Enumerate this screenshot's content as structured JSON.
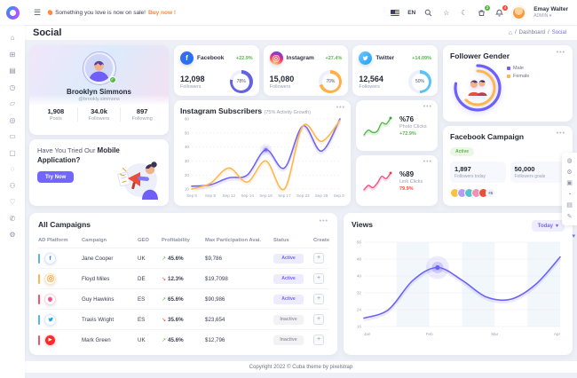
{
  "topbar": {
    "announcement_text": "Something you love is now on sale!",
    "announcement_link": "Buy now !",
    "language": "EN",
    "cart_badge": "2",
    "bell_badge": "4",
    "user_name": "Emay Walter",
    "user_role": "ADMIN",
    "role_chevron": "▾"
  },
  "header": {
    "title": "Social",
    "breadcrumb_root": "Dashboard",
    "breadcrumb_current": "Social",
    "home_glyph": "⌂"
  },
  "sidebar": {
    "icons": [
      {
        "name": "home",
        "glyph": "⌂"
      },
      {
        "name": "dashboard",
        "glyph": "⊞"
      },
      {
        "name": "widgets",
        "glyph": "▤"
      },
      {
        "name": "project",
        "glyph": "◷"
      },
      {
        "name": "files",
        "glyph": "▱"
      },
      {
        "name": "ecommerce",
        "glyph": "◎"
      },
      {
        "name": "ui-kits",
        "glyph": "▭"
      },
      {
        "name": "bonus",
        "glyph": "▢"
      },
      {
        "name": "animation",
        "glyph": "◌"
      },
      {
        "name": "users",
        "glyph": "⚇"
      },
      {
        "name": "wishlist",
        "glyph": "♡"
      },
      {
        "name": "contacts",
        "glyph": "✆"
      },
      {
        "name": "settings",
        "glyph": "⚙"
      }
    ]
  },
  "profile": {
    "name": "Brooklyn Simmons",
    "handle": "@brookly.simmons",
    "stats": [
      {
        "value": "1,908",
        "label": "Posts"
      },
      {
        "value": "34.0k",
        "label": "Followers"
      },
      {
        "value": "897",
        "label": "Following"
      }
    ]
  },
  "mobile_app": {
    "title_prefix": "Have You Tried Our ",
    "title_bold": "Mobile Application?",
    "cta": "Try Now"
  },
  "social_cards": [
    {
      "network": "Facebook",
      "change": "+22.9%",
      "value": "12,098",
      "label": "Followers"
    },
    {
      "network": "Instagram",
      "change": "+27.4%",
      "value": "15,080",
      "label": "Followers"
    },
    {
      "network": "Twitter",
      "change": "+14.09%",
      "value": "12,564",
      "label": "Followers"
    }
  ],
  "follower_gender": {
    "title": "Follower Gender",
    "legend_male": "Male",
    "legend_female": "Female"
  },
  "instagram_subscribers": {
    "title": "Instagram Subscribers",
    "subtitle": "(75% Activity Growth)"
  },
  "photo_clicks": {
    "value": "%76",
    "label": "Photo Clicks",
    "change": "+72.9%"
  },
  "link_clicks": {
    "value": "%89",
    "label": "Link Clicks",
    "change": "79.9%"
  },
  "facebook_campaign": {
    "title": "Facebook Campaign",
    "badge": "Active",
    "stat1_value": "1,897",
    "stat1_label": "Followers today",
    "stat2_value": "50,000",
    "stat2_label": "Followers goals",
    "extra_avatars": "+5",
    "avatar_colors": [
      "#f6c343",
      "#b49df5",
      "#59c3c9",
      "#f191b6",
      "#e8503a"
    ]
  },
  "campaigns": {
    "title": "All Campaigns",
    "headers": [
      "AD Platform",
      "Campaign",
      "GEO",
      "Profitability",
      "Max Participation Avai.",
      "Status",
      "Create"
    ],
    "rows": [
      {
        "platform": "facebook",
        "campaign": "Jane Cooper",
        "geo": "UK",
        "arrow": "↗",
        "profit": "45.6%",
        "trend": "up",
        "max": "$9,786",
        "status": "Active",
        "accent": "#58b3f6"
      },
      {
        "platform": "instagram",
        "campaign": "Floyd Miles",
        "geo": "DE",
        "arrow": "↘",
        "profit": "12.3%",
        "trend": "down",
        "max": "$19,7098",
        "status": "Active",
        "accent": "#ffb74d"
      },
      {
        "platform": "dribbble",
        "campaign": "Guy Hawkins",
        "geo": "ES",
        "arrow": "↗",
        "profit": "65.6%",
        "trend": "up",
        "max": "$90,986",
        "status": "Active",
        "accent": "#f2536d"
      },
      {
        "platform": "twitter",
        "campaign": "Travis Wright",
        "geo": "ES",
        "arrow": "↘",
        "profit": "35.6%",
        "trend": "down",
        "max": "$23,654",
        "status": "Inactive",
        "accent": "#58b3f6"
      },
      {
        "platform": "youtube",
        "campaign": "Mark Green",
        "geo": "UK",
        "arrow": "↗",
        "profit": "45.6%",
        "trend": "up",
        "max": "$12,796",
        "status": "Inactive",
        "accent": "#f2536d"
      }
    ]
  },
  "views": {
    "title": "Views",
    "filter": "Today",
    "filter_chevron": "▾"
  },
  "footer": {
    "text": "Copyright 2022 © Cuba theme by pixelstrap"
  },
  "customizer": {
    "icons": [
      {
        "name": "cart",
        "glyph": "◍"
      },
      {
        "name": "settings",
        "glyph": "⚙"
      },
      {
        "name": "layout",
        "glyph": "▣"
      },
      {
        "name": "color",
        "glyph": "◔"
      },
      {
        "name": "image",
        "glyph": "▤"
      },
      {
        "name": "edit",
        "glyph": "✎"
      }
    ]
  },
  "colors": {
    "primary": "#7366ff",
    "secondary": "#ffaf45",
    "success": "#54ba4a",
    "danger": "#fc4438",
    "pink": "#fb4d82",
    "twitter_blue": "#58c3f7"
  },
  "chart_data": [
    {
      "id": "instagram_subscribers",
      "type": "line",
      "title": "Instagram Subscribers",
      "subtitle": "(75% Activity Growth)",
      "categories": [
        "Sep 5",
        "Sep 8",
        "Sep 12",
        "Sep 14",
        "Sep 16",
        "Sep 17",
        "Sep 23",
        "Sep 26",
        "Sep 30"
      ],
      "ylim": [
        10,
        60
      ],
      "yticks": [
        10,
        20,
        30,
        40,
        50,
        60
      ],
      "grid": "dashed",
      "legend_position": "none",
      "series": [
        {
          "name": "Subscribers A",
          "color": "#7064f5",
          "values": [
            12,
            13,
            18,
            20,
            38,
            25,
            55,
            37,
            60
          ]
        },
        {
          "name": "Subscribers B",
          "color": "#ffb74d",
          "values": [
            10,
            14,
            25,
            15,
            30,
            10,
            55,
            44,
            59
          ]
        }
      ],
      "marker": {
        "series": 0,
        "index": 4
      }
    },
    {
      "id": "views",
      "type": "line",
      "title": "Views",
      "categories": [
        "Jan",
        "Feb",
        "Mar",
        "Apr"
      ],
      "ylim": [
        16,
        56
      ],
      "yticks": [
        16,
        24,
        32,
        40,
        48,
        56
      ],
      "grid": "solid",
      "legend_position": "none",
      "series": [
        {
          "name": "Views",
          "color": "#6d62f7",
          "values": [
            20,
            24,
            38,
            44,
            38,
            30,
            29,
            36,
            49
          ]
        }
      ],
      "marker": {
        "series": 0,
        "index": 3
      }
    },
    {
      "id": "photo_clicks_spark",
      "type": "line",
      "series": [
        {
          "name": "Photo Clicks",
          "color": "#54ba4a",
          "dot": "#2f9e38",
          "values": [
            3,
            5,
            4,
            4.5,
            8,
            7.5,
            10
          ]
        }
      ]
    },
    {
      "id": "link_clicks_spark",
      "type": "line",
      "series": [
        {
          "name": "Link Clicks",
          "color": "#fb4d82",
          "dot": "#e5383b",
          "values": [
            2,
            4,
            3,
            5,
            8,
            7,
            9.5
          ]
        }
      ]
    },
    {
      "id": "follower_gender_radial",
      "type": "radial",
      "series": [
        {
          "name": "Male",
          "color": "#6c5ffc",
          "value": 78
        },
        {
          "name": "Female",
          "color": "#ffb74d",
          "value": 62
        }
      ]
    },
    {
      "id": "social_rings",
      "type": "radial",
      "series": [
        {
          "name": "Facebook",
          "color": "#6362e7",
          "value": 78
        },
        {
          "name": "Instagram",
          "color": "#ffaf45",
          "value": 70
        },
        {
          "name": "Twitter",
          "color": "#58c3f7",
          "value": 50
        }
      ]
    }
  ]
}
